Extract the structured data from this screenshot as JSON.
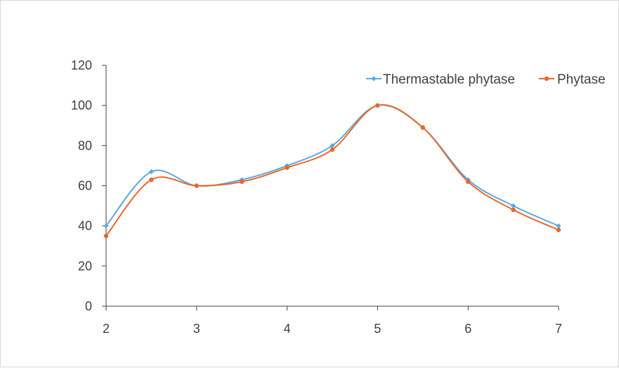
{
  "chart_data": {
    "type": "line",
    "title": "",
    "xlabel": "",
    "ylabel": "",
    "xlim": [
      2,
      7
    ],
    "ylim": [
      0,
      120
    ],
    "x_ticks": [
      2,
      3,
      4,
      5,
      6,
      7
    ],
    "y_ticks": [
      0,
      20,
      40,
      60,
      80,
      100,
      120
    ],
    "grid": false,
    "legend_position": "top-right",
    "smooth": true,
    "x": [
      2,
      2.5,
      3,
      3.5,
      4,
      4.5,
      5,
      5.5,
      6,
      6.5,
      7
    ],
    "series": [
      {
        "name": "Thermastable phytase",
        "color": "#5ba9e0",
        "marker": "diamond",
        "values": [
          40,
          67,
          60,
          63,
          70,
          80,
          100,
          89,
          63,
          50,
          40
        ]
      },
      {
        "name": "Phytase",
        "color": "#e8682c",
        "marker": "circle",
        "values": [
          35,
          63,
          60,
          62,
          69,
          78,
          100,
          89,
          62,
          48,
          38
        ]
      }
    ]
  }
}
